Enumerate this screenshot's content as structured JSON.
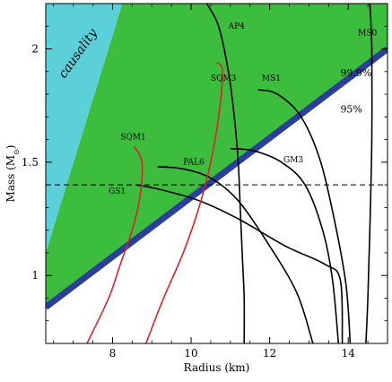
{
  "chart_data": {
    "type": "line",
    "xlabel": "Radius (km)",
    "ylabel_main": "Mass (M",
    "ylabel_sub": "⊙",
    "ylabel_close": ")",
    "xlim": [
      6.3,
      15.0
    ],
    "ylim": [
      0.7,
      2.2
    ],
    "x_ticks": [
      8,
      10,
      12,
      14
    ],
    "y_ticks": [
      1,
      1.5,
      2
    ],
    "x_tick_labels": [
      "8",
      "10",
      "12",
      "14"
    ],
    "y_tick_labels": [
      "1",
      "1.5",
      "2"
    ],
    "colors": {
      "causality": "#5bd0d8",
      "allowed": "#3dbd3d",
      "boundary": "#2a3f95",
      "hadronic": "#000000",
      "quark": "#e0202a"
    },
    "regions": {
      "causality": {
        "label": "causality",
        "polygon": [
          [
            6.3,
            1.1
          ],
          [
            8.25,
            2.2
          ],
          [
            6.3,
            2.2
          ]
        ]
      },
      "allowed": {
        "polygon": [
          [
            6.3,
            0.86
          ],
          [
            15.0,
            2.0
          ],
          [
            15.0,
            2.2
          ],
          [
            8.25,
            2.2
          ],
          [
            6.3,
            1.1
          ]
        ]
      },
      "boundary_line": [
        [
          6.3,
          0.86
        ],
        [
          15.0,
          2.0
        ]
      ],
      "confidence_labels": [
        {
          "text": "99.9%",
          "x": 13.8,
          "y": 1.88
        },
        {
          "text": "95%",
          "x": 13.8,
          "y": 1.72
        }
      ]
    },
    "reference_line": {
      "y": 1.4,
      "style": "dashed"
    },
    "series": [
      {
        "name": "AP4",
        "kind": "hadronic",
        "label_pos": [
          10.95,
          2.09
        ],
        "points": [
          [
            10.4,
            2.2
          ],
          [
            10.7,
            2.1
          ],
          [
            10.95,
            1.9
          ],
          [
            11.1,
            1.7
          ],
          [
            11.2,
            1.5
          ],
          [
            11.25,
            1.3
          ],
          [
            11.3,
            1.1
          ],
          [
            11.35,
            0.9
          ],
          [
            11.35,
            0.7
          ]
        ]
      },
      {
        "name": "MS0",
        "kind": "hadronic",
        "label_pos": [
          14.25,
          2.06
        ],
        "points": [
          [
            14.55,
            2.2
          ],
          [
            14.6,
            2.0
          ],
          [
            14.6,
            1.6
          ],
          [
            14.55,
            1.2
          ],
          [
            14.5,
            0.9
          ],
          [
            14.45,
            0.7
          ]
        ]
      },
      {
        "name": "MS1",
        "kind": "hadronic",
        "label_pos": [
          11.8,
          1.86
        ],
        "points": [
          [
            11.7,
            1.82
          ],
          [
            12.2,
            1.8
          ],
          [
            12.8,
            1.7
          ],
          [
            13.3,
            1.5
          ],
          [
            13.7,
            1.2
          ],
          [
            13.95,
            0.95
          ],
          [
            14.05,
            0.7
          ]
        ]
      },
      {
        "name": "GM3",
        "kind": "hadronic",
        "label_pos": [
          12.35,
          1.5
        ],
        "points": [
          [
            11.0,
            1.56
          ],
          [
            11.6,
            1.55
          ],
          [
            12.3,
            1.5
          ],
          [
            12.9,
            1.4
          ],
          [
            13.35,
            1.2
          ],
          [
            13.6,
            0.98
          ],
          [
            13.75,
            0.7
          ]
        ]
      },
      {
        "name": "PAL6",
        "kind": "hadronic",
        "label_pos": [
          9.8,
          1.49
        ],
        "points": [
          [
            9.15,
            1.48
          ],
          [
            9.8,
            1.47
          ],
          [
            10.5,
            1.43
          ],
          [
            11.2,
            1.33
          ],
          [
            12.0,
            1.13
          ],
          [
            12.7,
            0.92
          ],
          [
            13.1,
            0.7
          ]
        ]
      },
      {
        "name": "GS1",
        "kind": "hadronic",
        "label_pos": [
          7.9,
          1.36
        ],
        "points": [
          [
            8.6,
            1.4
          ],
          [
            9.2,
            1.38
          ],
          [
            10.2,
            1.33
          ],
          [
            11.2,
            1.25
          ],
          [
            12.4,
            1.13
          ],
          [
            13.4,
            1.05
          ],
          [
            13.8,
            0.98
          ],
          [
            13.85,
            0.7
          ]
        ]
      },
      {
        "name": "SQM1",
        "kind": "quark",
        "label_pos": [
          8.2,
          1.6
        ],
        "points": [
          [
            8.55,
            1.57
          ],
          [
            8.75,
            1.5
          ],
          [
            8.7,
            1.35
          ],
          [
            8.5,
            1.2
          ],
          [
            8.2,
            1.05
          ],
          [
            7.9,
            0.9
          ],
          [
            7.35,
            0.7
          ]
        ]
      },
      {
        "name": "SQM3",
        "kind": "quark",
        "label_pos": [
          10.5,
          1.86
        ],
        "points": [
          [
            10.65,
            1.94
          ],
          [
            10.8,
            1.9
          ],
          [
            10.7,
            1.7
          ],
          [
            10.5,
            1.5
          ],
          [
            10.2,
            1.3
          ],
          [
            9.8,
            1.1
          ],
          [
            9.3,
            0.9
          ],
          [
            8.85,
            0.7
          ]
        ]
      }
    ]
  }
}
